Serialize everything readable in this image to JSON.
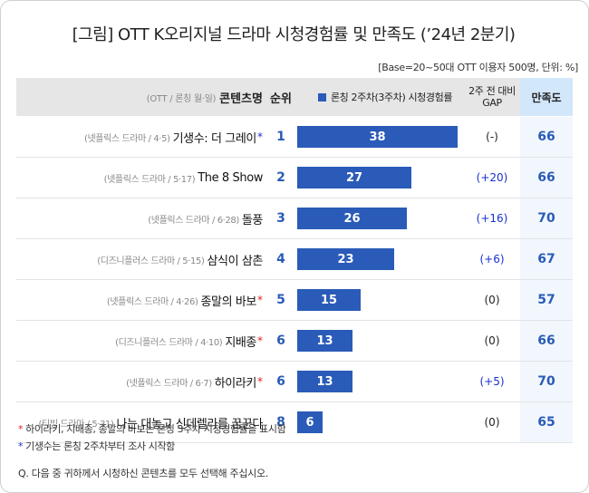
{
  "title": "[그림] OTT K오리지널 드라마 시청경험률 및 만족도 (’24년 2분기)",
  "base_note": "[Base=20~50대 OTT 이용자 500명, 단위: %]",
  "header": {
    "content_sub": "(OTT / 론칭 월·일)",
    "content_main": "콘텐츠명",
    "rank": "순위",
    "rate": "론칭 2주차(3주차) 시청경험률",
    "gap_line1": "2주 전 대비",
    "gap_line2": "GAP",
    "satisfaction": "만족도"
  },
  "chart_data": {
    "type": "bar",
    "title": "[그림] OTT K오리지널 드라마 시청경험률 및 만족도 (’24년 2분기)",
    "series_name": "론칭 2주차(3주차) 시청경험률",
    "xlim": [
      0,
      38
    ],
    "rows": [
      {
        "sub": "(넷플릭스 드라마 / 4·5)",
        "name": "기생수: 더 그레이",
        "mark": "*",
        "mark_color": "blue",
        "rank": "1",
        "value": 38,
        "gap": "(-)",
        "satisfaction": "66"
      },
      {
        "sub": "(넷플릭스 드라마 / 5·17)",
        "name": "The 8 Show",
        "mark": "",
        "mark_color": "",
        "rank": "2",
        "value": 27,
        "gap": "(+20)",
        "satisfaction": "66"
      },
      {
        "sub": "(넷플릭스 드라마 / 6·28)",
        "name": "돌풍",
        "mark": "",
        "mark_color": "",
        "rank": "3",
        "value": 26,
        "gap": "(+16)",
        "satisfaction": "70"
      },
      {
        "sub": "(디즈니플러스 드라마 / 5·15)",
        "name": "삼식이 삼촌",
        "mark": "",
        "mark_color": "",
        "rank": "4",
        "value": 23,
        "gap": "(+6)",
        "satisfaction": "67"
      },
      {
        "sub": "(넷플릭스 드라마 / 4·26)",
        "name": "종말의 바보",
        "mark": "*",
        "mark_color": "red",
        "rank": "5",
        "value": 15,
        "gap": "(0)",
        "satisfaction": "57"
      },
      {
        "sub": "(디즈니플러스 드라마 / 4·10)",
        "name": "지배종",
        "mark": "*",
        "mark_color": "red",
        "rank": "6",
        "value": 13,
        "gap": "(0)",
        "satisfaction": "66"
      },
      {
        "sub": "(넷플릭스 드라마 / 6·7)",
        "name": "하이라키",
        "mark": "*",
        "mark_color": "red",
        "rank": "6",
        "value": 13,
        "gap": "(+5)",
        "satisfaction": "70"
      },
      {
        "sub": "(티빙 드라마 / 5·31)",
        "name": "나는 대놓고 신데렐라를 꿈꾼다",
        "mark": "",
        "mark_color": "",
        "rank": "8",
        "value": 6,
        "gap": "(0)",
        "satisfaction": "65"
      }
    ]
  },
  "notes": [
    {
      "mark": "*",
      "color": "red",
      "text": "하이라키, 지배종, 종말의 바보는 론칭 3주차 시청경험률을 표시함"
    },
    {
      "mark": "*",
      "color": "blue",
      "text": "기생수는 론칭 2주차부터 조사 시작함"
    }
  ],
  "question": "Q. 다음 중 귀하께서 시청하신 콘텐츠를 모두 선택해 주십시오.",
  "colors": {
    "bar": "#2a5bb8",
    "satisfaction_bg": "#d3e7fb",
    "header_bg": "#e6e6e6",
    "red_mark": "#e12020",
    "blue_mark": "#1a2fd0"
  }
}
